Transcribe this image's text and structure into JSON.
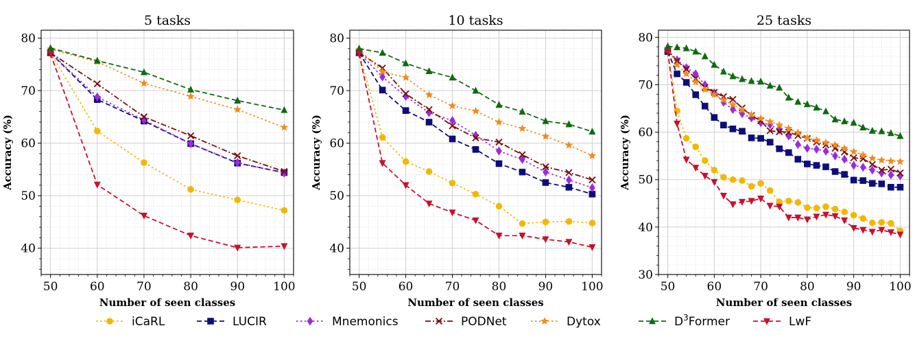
{
  "chart_data": [
    {
      "type": "line",
      "title": "5 tasks",
      "xlabel": "Number of seen classes",
      "ylabel": "Accuracy (%)",
      "xlim": [
        48,
        102
      ],
      "ylim": [
        35,
        81.5
      ],
      "xticks": [
        50,
        60,
        70,
        80,
        90,
        100
      ],
      "yticks": [
        40,
        50,
        60,
        70,
        80
      ],
      "grid": true,
      "series": [
        {
          "name": "iCaRL",
          "x": [
            50,
            60,
            70,
            80,
            90,
            100
          ],
          "y": [
            77.2,
            62.3,
            56.3,
            51.2,
            49.2,
            47.2
          ]
        },
        {
          "name": "LUCIR",
          "x": [
            50,
            60,
            70,
            80,
            90,
            100
          ],
          "y": [
            77.2,
            68.3,
            64.2,
            59.9,
            56.2,
            54.4
          ]
        },
        {
          "name": "Mnemonics",
          "x": [
            50,
            60,
            70,
            80,
            90,
            100
          ],
          "y": [
            77.2,
            68.8,
            64.4,
            59.9,
            56.3,
            54.3
          ]
        },
        {
          "name": "PODNet",
          "x": [
            50,
            60,
            70,
            80,
            90,
            100
          ],
          "y": [
            77.2,
            71.3,
            65.0,
            61.4,
            57.6,
            54.6
          ]
        },
        {
          "name": "Dytox",
          "x": [
            50,
            60,
            70,
            80,
            90,
            100
          ],
          "y": [
            77.9,
            75.5,
            71.4,
            68.9,
            66.4,
            63.0
          ]
        },
        {
          "name": "D³Former",
          "x": [
            50,
            60,
            70,
            80,
            90,
            100
          ],
          "y": [
            78.1,
            75.7,
            73.5,
            70.2,
            68.1,
            66.3
          ]
        },
        {
          "name": "LwF",
          "x": [
            50,
            60,
            70,
            80,
            90,
            100
          ],
          "y": [
            77.0,
            52.1,
            46.2,
            42.4,
            40.1,
            40.4
          ]
        }
      ]
    },
    {
      "type": "line",
      "title": "10 tasks",
      "xlabel": "Number of seen classes",
      "ylabel": "Accuracy (%)",
      "xlim": [
        48,
        102
      ],
      "ylim": [
        35,
        81.5
      ],
      "xticks": [
        50,
        60,
        70,
        80,
        90,
        100
      ],
      "yticks": [
        40,
        50,
        60,
        70,
        80
      ],
      "grid": true,
      "series": [
        {
          "name": "iCaRL",
          "x": [
            50,
            55,
            60,
            65,
            70,
            75,
            80,
            85,
            90,
            95,
            100
          ],
          "y": [
            77.2,
            61.1,
            56.5,
            54.6,
            52.4,
            50.3,
            48.0,
            44.7,
            45.0,
            45.1,
            44.8
          ]
        },
        {
          "name": "LUCIR",
          "x": [
            50,
            55,
            60,
            65,
            70,
            75,
            80,
            85,
            90,
            95,
            100
          ],
          "y": [
            77.2,
            70.1,
            66.2,
            64.0,
            60.8,
            58.8,
            56.1,
            54.5,
            52.5,
            51.6,
            50.3
          ]
        },
        {
          "name": "Mnemonics",
          "x": [
            50,
            55,
            60,
            65,
            70,
            75,
            80,
            85,
            90,
            95,
            100
          ],
          "y": [
            77.2,
            72.6,
            68.9,
            65.8,
            64.3,
            61.5,
            58.5,
            56.9,
            54.5,
            53.0,
            51.5
          ]
        },
        {
          "name": "PODNet",
          "x": [
            50,
            55,
            60,
            65,
            70,
            75,
            80,
            85,
            90,
            95,
            100
          ],
          "y": [
            77.2,
            74.3,
            69.4,
            66.4,
            63.3,
            61.0,
            60.2,
            57.8,
            55.5,
            54.4,
            53.0
          ]
        },
        {
          "name": "Dytox",
          "x": [
            50,
            55,
            60,
            65,
            70,
            75,
            80,
            85,
            90,
            95,
            100
          ],
          "y": [
            77.8,
            73.6,
            72.5,
            69.2,
            67.1,
            66.1,
            64.0,
            62.8,
            61.3,
            59.6,
            57.6
          ]
        },
        {
          "name": "D³Former",
          "x": [
            50,
            55,
            60,
            65,
            70,
            75,
            80,
            85,
            90,
            95,
            100
          ],
          "y": [
            78.0,
            77.2,
            75.2,
            73.7,
            72.5,
            70.0,
            67.3,
            66.0,
            64.2,
            63.6,
            62.2
          ]
        },
        {
          "name": "LwF",
          "x": [
            50,
            55,
            60,
            65,
            70,
            75,
            80,
            85,
            90,
            95,
            100
          ],
          "y": [
            77.0,
            56.2,
            52.0,
            48.5,
            46.8,
            45.3,
            42.4,
            42.4,
            41.7,
            41.2,
            40.2
          ]
        }
      ]
    },
    {
      "type": "line",
      "title": "25 tasks",
      "xlabel": "Number of seen classes",
      "ylabel": "Accuracy (%)",
      "xlim": [
        48,
        102
      ],
      "ylim": [
        30,
        81.5
      ],
      "xticks": [
        50,
        60,
        70,
        80,
        90,
        100
      ],
      "yticks": [
        30,
        40,
        50,
        60,
        70,
        80
      ],
      "grid": true,
      "series": [
        {
          "name": "iCaRL",
          "x": [
            50,
            52,
            54,
            56,
            58,
            60,
            62,
            64,
            66,
            68,
            70,
            72,
            74,
            76,
            78,
            80,
            82,
            84,
            86,
            88,
            90,
            92,
            94,
            96,
            98,
            100
          ],
          "y": [
            77.2,
            64.5,
            58.7,
            56.9,
            54.0,
            52.0,
            50.5,
            50.0,
            49.8,
            48.6,
            49.2,
            47.7,
            45.3,
            45.5,
            45.2,
            44.1,
            44.0,
            44.3,
            43.8,
            43.2,
            42.5,
            41.8,
            40.9,
            41.0,
            40.8,
            39.2
          ]
        },
        {
          "name": "LUCIR",
          "x": [
            50,
            52,
            54,
            56,
            58,
            60,
            62,
            64,
            66,
            68,
            70,
            72,
            74,
            76,
            78,
            80,
            82,
            84,
            86,
            88,
            90,
            92,
            94,
            96,
            98,
            100
          ],
          "y": [
            77.0,
            72.3,
            70.5,
            67.9,
            65.5,
            63.1,
            61.5,
            60.7,
            60.2,
            58.8,
            58.7,
            57.9,
            56.5,
            55.7,
            54.3,
            53.3,
            53.0,
            52.7,
            51.7,
            51.1,
            49.9,
            49.8,
            49.2,
            49.1,
            48.4,
            48.4
          ]
        },
        {
          "name": "Mnemonics",
          "x": [
            50,
            52,
            54,
            56,
            58,
            60,
            62,
            64,
            66,
            68,
            70,
            72,
            74,
            76,
            78,
            80,
            82,
            84,
            86,
            88,
            90,
            92,
            94,
            96,
            98,
            100
          ],
          "y": [
            77.2,
            75.2,
            73.6,
            72.3,
            70.0,
            68.3,
            66.3,
            64.8,
            63.9,
            63.0,
            62.0,
            61.6,
            60.5,
            59.2,
            57.4,
            56.6,
            56.4,
            56.0,
            55.0,
            54.3,
            53.0,
            52.6,
            52.0,
            51.4,
            51.0,
            50.8
          ]
        },
        {
          "name": "PODNet",
          "x": [
            50,
            52,
            54,
            56,
            58,
            60,
            62,
            64,
            66,
            68,
            70,
            72,
            74,
            76,
            78,
            80,
            82,
            84,
            86,
            88,
            90,
            92,
            94,
            96,
            98,
            100
          ],
          "y": [
            77.2,
            75.0,
            73.3,
            71.3,
            69.4,
            68.4,
            67.5,
            66.9,
            65.1,
            63.5,
            62.4,
            60.3,
            60.1,
            60.0,
            59.3,
            58.7,
            57.9,
            57.3,
            56.6,
            55.8,
            54.6,
            54.4,
            53.2,
            52.0,
            52.2,
            51.4
          ]
        },
        {
          "name": "Dytox",
          "x": [
            50,
            52,
            54,
            56,
            58,
            60,
            62,
            64,
            66,
            68,
            70,
            72,
            74,
            76,
            78,
            80,
            82,
            84,
            86,
            88,
            90,
            92,
            94,
            96,
            98,
            100
          ],
          "y": [
            77.6,
            74.2,
            72.3,
            70.6,
            69.0,
            67.9,
            66.8,
            65.8,
            64.7,
            63.7,
            62.9,
            62.2,
            61.5,
            60.8,
            59.9,
            58.8,
            58.3,
            57.8,
            57.3,
            56.6,
            55.9,
            55.2,
            54.5,
            54.1,
            53.9,
            53.8
          ]
        },
        {
          "name": "D³Former",
          "x": [
            50,
            52,
            54,
            56,
            58,
            60,
            62,
            64,
            66,
            68,
            70,
            72,
            74,
            76,
            78,
            80,
            82,
            84,
            86,
            88,
            90,
            92,
            94,
            96,
            98,
            100
          ],
          "y": [
            78.1,
            77.9,
            77.7,
            77.0,
            76.0,
            74.2,
            72.8,
            71.8,
            71.2,
            70.8,
            70.7,
            69.8,
            69.4,
            67.3,
            66.4,
            65.9,
            65.2,
            64.4,
            62.7,
            62.3,
            62.0,
            61.0,
            60.3,
            60.2,
            59.8,
            59.2
          ]
        },
        {
          "name": "LwF",
          "x": [
            50,
            52,
            54,
            56,
            58,
            60,
            62,
            64,
            66,
            68,
            70,
            72,
            74,
            76,
            78,
            80,
            82,
            84,
            86,
            88,
            90,
            92,
            94,
            96,
            98,
            100
          ],
          "y": [
            77.0,
            61.8,
            54.2,
            52.5,
            50.8,
            49.5,
            46.6,
            44.8,
            45.3,
            45.5,
            46.0,
            44.5,
            44.3,
            42.0,
            42.0,
            41.6,
            42.2,
            42.6,
            42.3,
            41.4,
            39.8,
            39.4,
            39.0,
            39.4,
            38.9,
            38.4
          ]
        }
      ]
    }
  ],
  "legend": {
    "placement": "bottom",
    "entries": [
      {
        "name": "iCaRL",
        "text": "iCaRL",
        "color": "#f2b800",
        "marker": "circle",
        "dash": "dotted"
      },
      {
        "name": "LUCIR",
        "text": "LUCIR",
        "color": "#0d0d7a",
        "marker": "square",
        "dash": "dashed"
      },
      {
        "name": "Mnemonics",
        "text": "Mnemonics",
        "color": "#9a2be0",
        "marker": "diamond",
        "dash": "dotted"
      },
      {
        "name": "PODNet",
        "text": "PODNet",
        "color": "#7a0a0a",
        "marker": "x",
        "dash": "dashdot"
      },
      {
        "name": "Dytox",
        "text": "Dytox",
        "color": "#f08c1a",
        "marker": "star",
        "dash": "dotted"
      },
      {
        "name": "D3Former",
        "text": "D",
        "sup": "3",
        "suffix": "Former",
        "color": "#0f6b0f",
        "marker": "triangle-up",
        "dash": "dashed"
      },
      {
        "name": "LwF",
        "text": "LwF",
        "color": "#c8102e",
        "marker": "triangle-down",
        "dash": "dashed"
      }
    ]
  }
}
